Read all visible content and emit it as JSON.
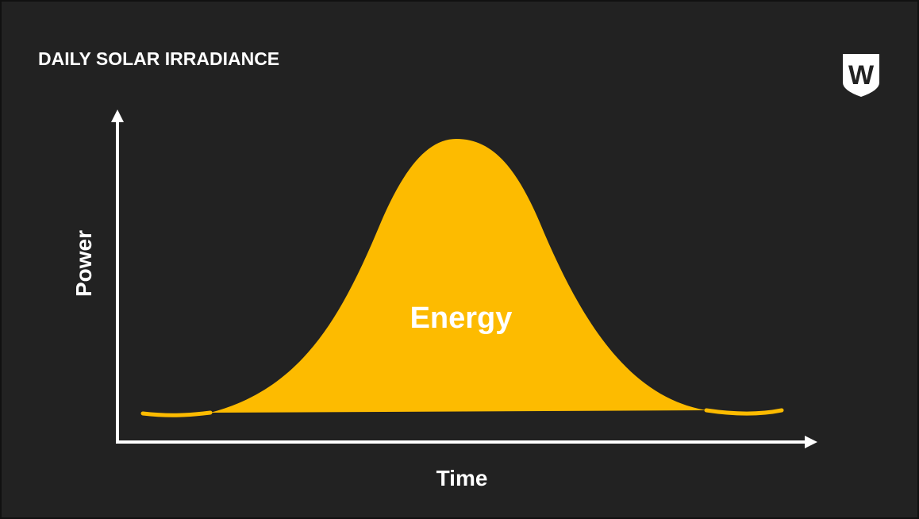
{
  "header": {
    "title": "DAILY SOLAR IRRADIANCE"
  },
  "logo": {
    "label": "W"
  },
  "diagram": {
    "y_axis_label": "Power",
    "x_axis_label": "Time",
    "area_label": "Energy"
  }
}
